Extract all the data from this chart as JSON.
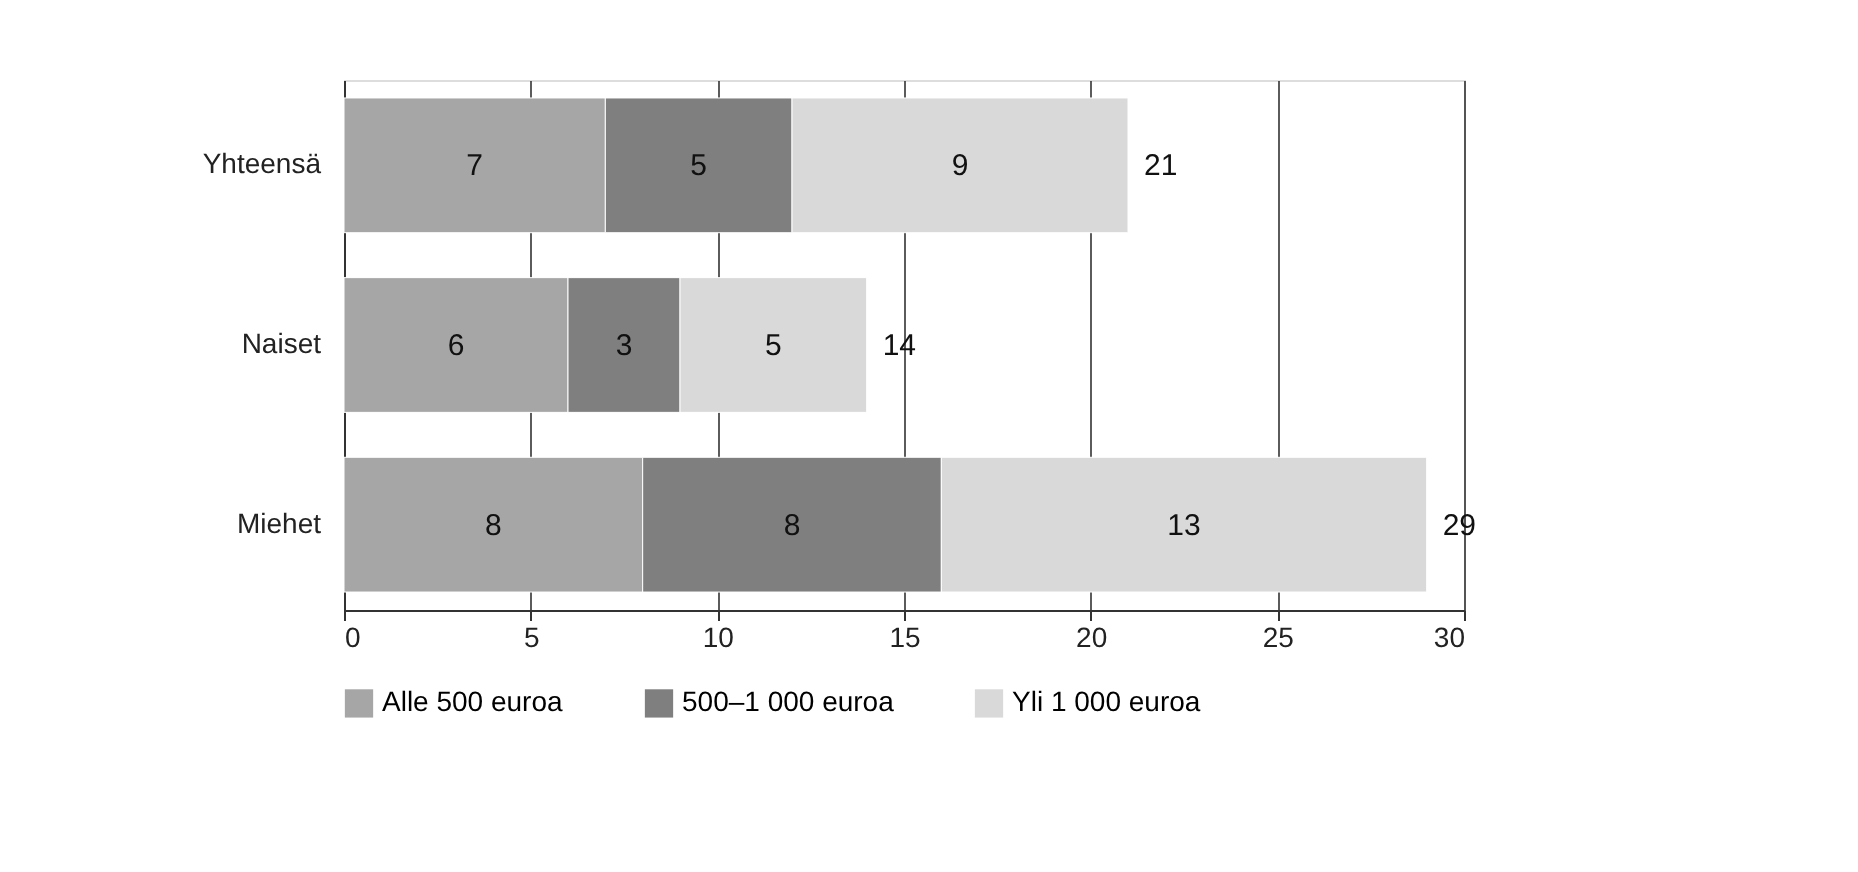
{
  "chart_data": {
    "type": "bar",
    "orientation": "horizontal",
    "stacked": true,
    "categories": [
      "Yhteensä",
      "Naiset",
      "Miehet"
    ],
    "series": [
      {
        "name": "Alle 500 euroa",
        "color": "#a6a6a6",
        "values": [
          7,
          6,
          8
        ]
      },
      {
        "name": "500–1 000 euroa",
        "color": "#7f7f7f",
        "values": [
          5,
          3,
          8
        ]
      },
      {
        "name": "Yli 1 000 euroa",
        "color": "#d9d9d9",
        "values": [
          9,
          5,
          13
        ]
      }
    ],
    "totals": [
      "21",
      "14",
      "29"
    ],
    "data_labels": true,
    "xlim": [
      0,
      30
    ],
    "xticks": [
      0,
      5,
      10,
      15,
      20,
      25,
      30
    ],
    "grid": "x",
    "legend": "bottom"
  }
}
